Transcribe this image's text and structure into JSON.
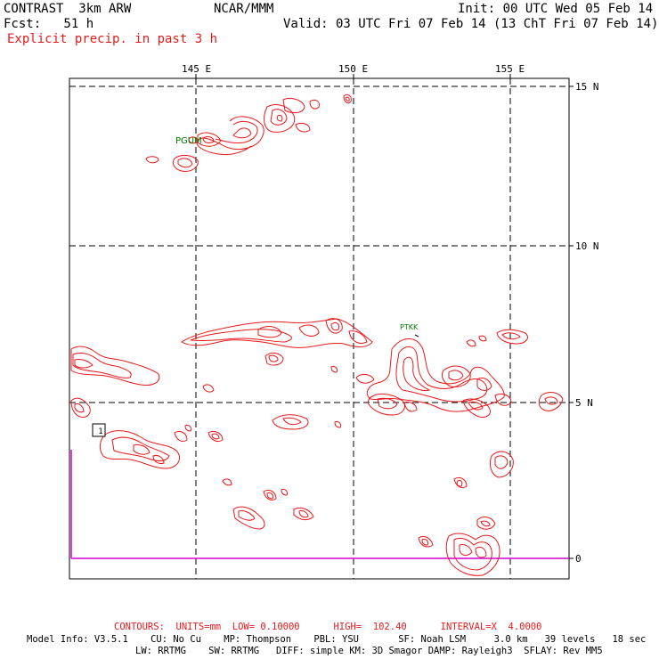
{
  "header": {
    "model": "CONTRAST  3km ARW",
    "center": "NCAR/MMM",
    "init": "Init: 00 UTC Wed 05 Feb 14",
    "fcst": "Fcst:   51 h",
    "valid": "Valid: 03 UTC Fri 07 Feb 14 (13 ChT Fri 07 Feb 14)",
    "field": "Explicit precip. in past 3 h"
  },
  "axes": {
    "lon_labels": [
      "145 E",
      "150 E",
      "155 E"
    ],
    "lat_labels": [
      "15 N",
      "10 N",
      "5 N",
      "0"
    ]
  },
  "stations": [
    "PGUM",
    "PTKK"
  ],
  "box_label": "1",
  "colors": {
    "contour": "#e8191c",
    "station": "#007a00",
    "grid": "#000000",
    "boundary": "#d400d4"
  },
  "footer": {
    "contours": "CONTOURS:  UNITS=mm  LOW= 0.10000      HIGH=  102.40      INTERVAL=X  4.0000",
    "model_info_1": "Model Info: V3.5.1    CU: No Cu    MP: Thompson    PBL: YSU       SF: Noah LSM     3.0 km   39 levels   18 sec",
    "model_info_2": "LW: RRTMG    SW: RRTMG   DIFF: simple KM: 3D Smagor DAMP: Rayleigh3  SFLAY: Rev MM5"
  }
}
